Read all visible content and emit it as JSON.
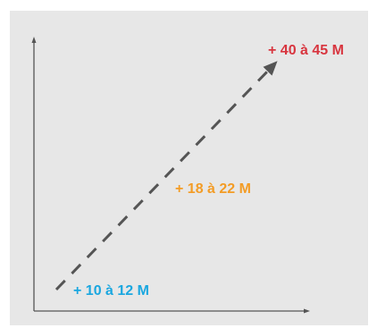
{
  "colors": {
    "background": "#e7e7e7",
    "axis": "#555555",
    "trend_line": "#555555",
    "low": "#1aa7e0",
    "mid": "#f39c25",
    "high": "#d8353f"
  },
  "chart_data": {
    "type": "line",
    "title": "",
    "xlabel": "",
    "ylabel": "",
    "line_style": "dashed-arrow",
    "grid": false,
    "legend": "none",
    "annotations": [
      {
        "text": "+ 10 à 12 M",
        "color_key": "low"
      },
      {
        "text": "+ 18 à 22 M",
        "color_key": "mid"
      },
      {
        "text": "+ 40 à 45 M",
        "color_key": "high"
      }
    ]
  }
}
